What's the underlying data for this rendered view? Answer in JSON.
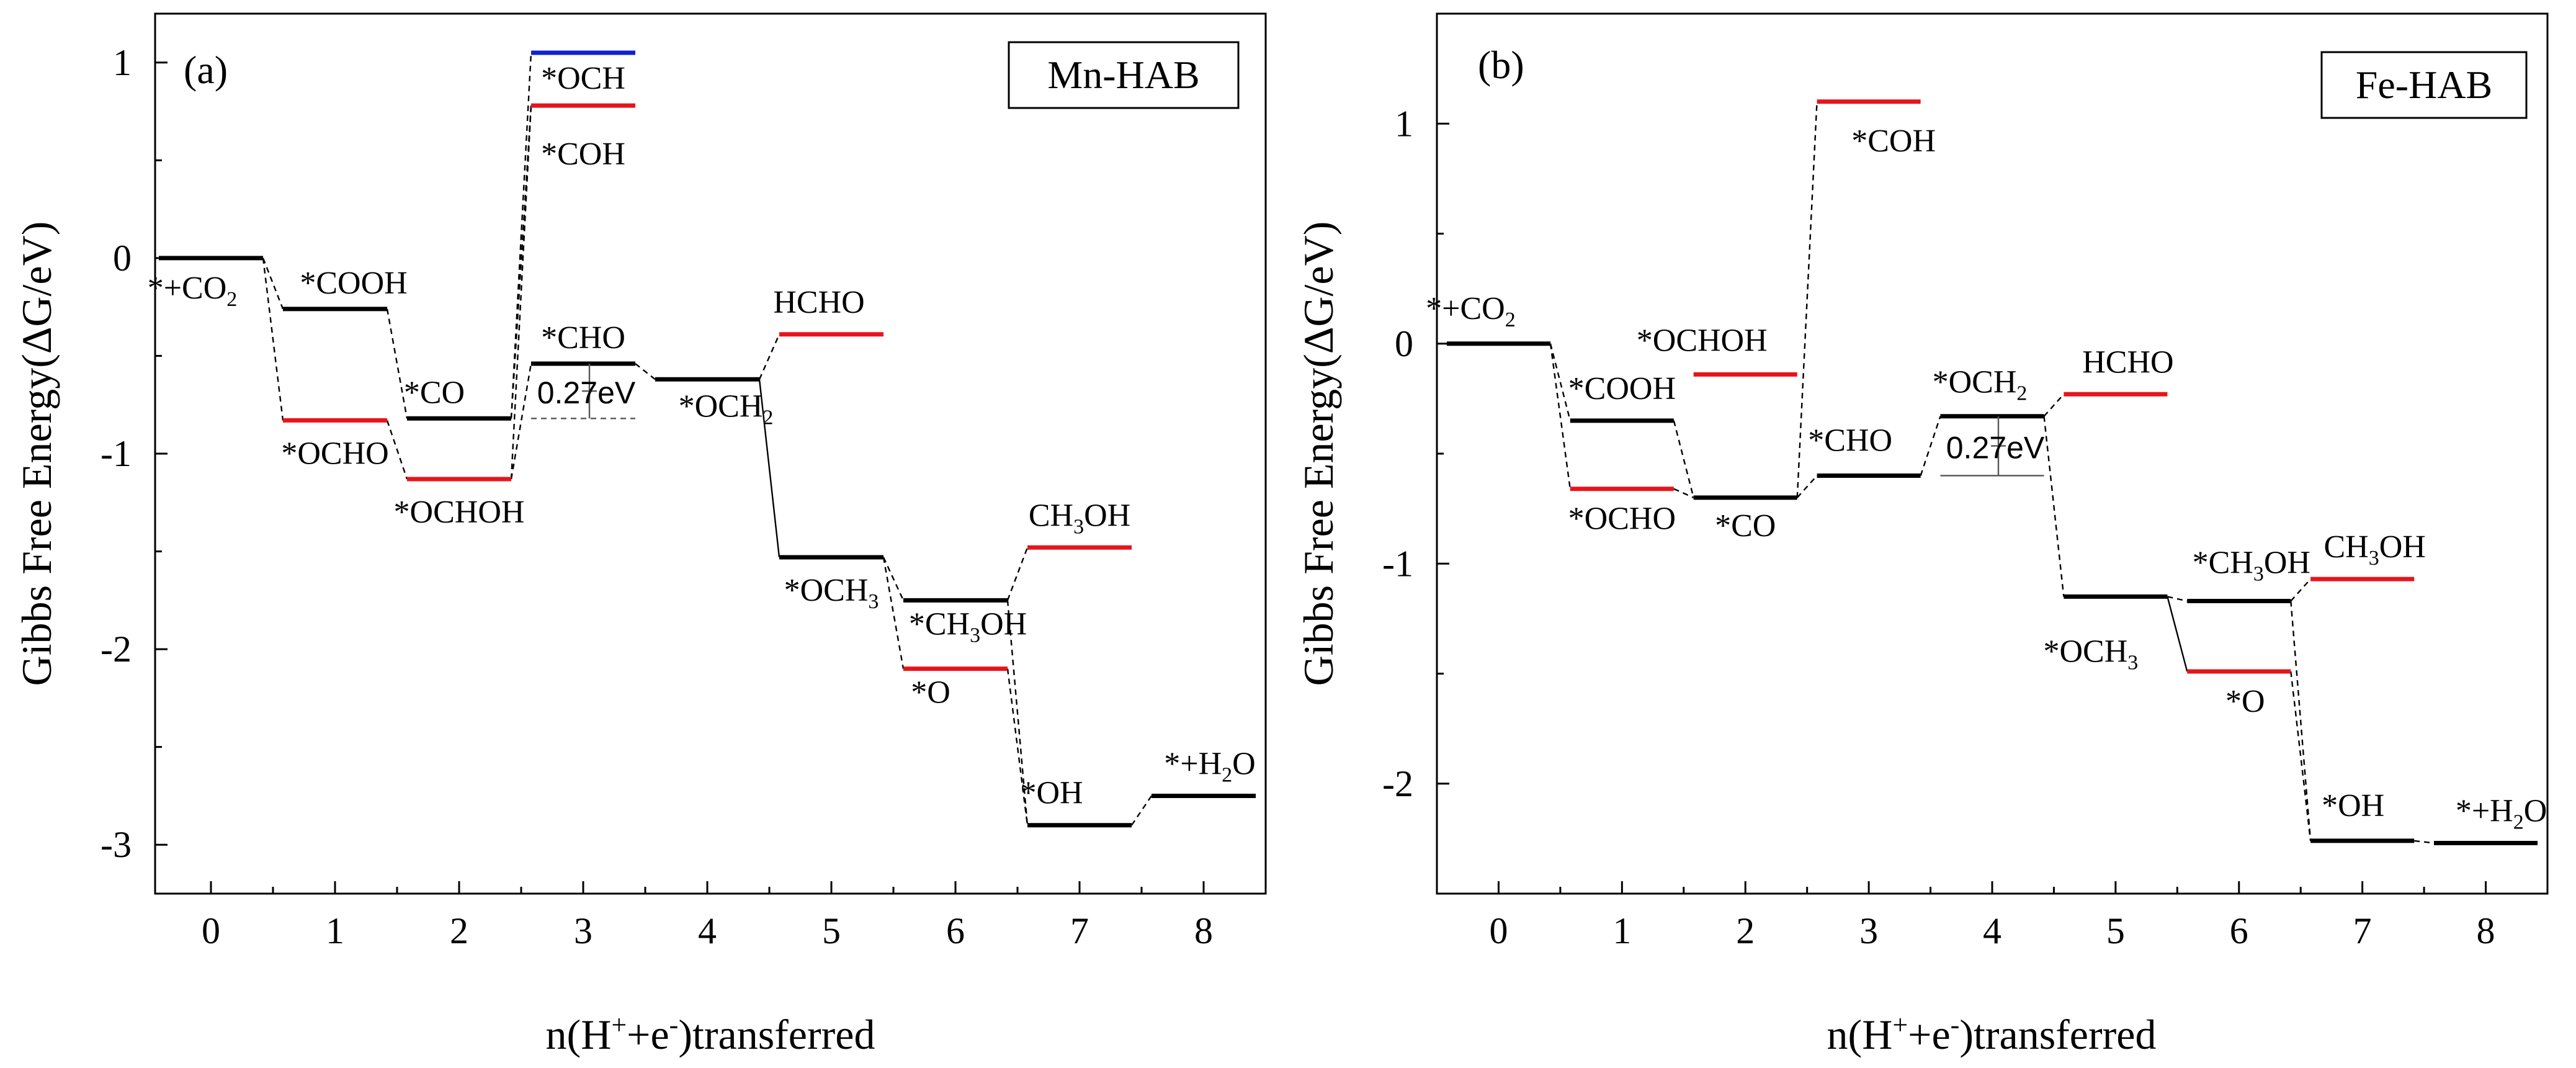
{
  "chart_data": [
    {
      "type": "line",
      "panel_label": "(a)",
      "legend": "Mn-HAB",
      "xlabel": "n(H+e-)transferred",
      "ylabel": "Gibbs Free Energy(ΔG/eV)",
      "xlim": [
        -0.45,
        8.5
      ],
      "ylim": [
        -3.25,
        1.25
      ],
      "xticks": [
        0,
        1,
        2,
        3,
        4,
        5,
        6,
        7,
        8
      ],
      "yticks": [
        1,
        0,
        -1,
        -2,
        -3
      ],
      "ytick_labels": [
        "1",
        "0",
        "-1",
        "-2",
        "-3"
      ],
      "levels": [
        {
          "x": 0,
          "y": 0.0,
          "color": "#000000",
          "label": [
            "*+CO",
            "2",
            ""
          ]
        },
        {
          "x": 1,
          "y": -0.26,
          "color": "#000000",
          "label": [
            "*COOH",
            "",
            ""
          ]
        },
        {
          "x": 1,
          "y": -0.83,
          "color": "#e8141b",
          "label": [
            "*OCHO",
            "",
            ""
          ]
        },
        {
          "x": 2,
          "y": -0.82,
          "color": "#000000",
          "label": [
            "*CO",
            "",
            ""
          ]
        },
        {
          "x": 2,
          "y": -1.13,
          "color": "#e8141b",
          "label": [
            "*OCHOH",
            "",
            ""
          ]
        },
        {
          "x": 3,
          "y": 1.05,
          "color": "#1020d0",
          "label": [
            "*OCH",
            "",
            ""
          ]
        },
        {
          "x": 3,
          "y": 0.78,
          "color": "#e8141b",
          "label": [
            "*COH",
            "",
            ""
          ]
        },
        {
          "x": 3,
          "y": -0.54,
          "color": "#000000",
          "label": [
            "*CHO",
            "",
            ""
          ]
        },
        {
          "x": 4,
          "y": -0.62,
          "color": "#000000",
          "label": [
            "*OCH",
            "2",
            ""
          ]
        },
        {
          "x": 5,
          "y": -0.39,
          "color": "#e8141b",
          "label": [
            "HCHO",
            "",
            ""
          ]
        },
        {
          "x": 5,
          "y": -1.53,
          "color": "#000000",
          "label": [
            "*OCH",
            "3",
            ""
          ]
        },
        {
          "x": 6,
          "y": -1.75,
          "color": "#000000",
          "label": [
            "*CH",
            "3",
            "OH"
          ]
        },
        {
          "x": 6,
          "y": -2.1,
          "color": "#e8141b",
          "label": [
            "*O",
            "",
            ""
          ]
        },
        {
          "x": 7,
          "y": -1.48,
          "color": "#e8141b",
          "label": [
            "CH",
            "3",
            "OH"
          ]
        },
        {
          "x": 7,
          "y": -2.9,
          "color": "#000000",
          "label": [
            "*OH",
            "",
            ""
          ]
        },
        {
          "x": 8,
          "y": -2.75,
          "color": "#000000",
          "label": [
            "*+H",
            "2",
            "O"
          ]
        }
      ],
      "barrier_annotation": {
        "text": "0.27eV",
        "x": 3,
        "from": -0.82,
        "to": -0.54
      }
    },
    {
      "type": "line",
      "panel_label": "(b)",
      "legend": "Fe-HAB",
      "xlabel": "n(H+e-)transferred",
      "ylabel": "Gibbs Free Energy(ΔG/eV)",
      "xlim": [
        -0.5,
        8.5
      ],
      "ylim": [
        -2.5,
        1.5
      ],
      "xticks": [
        0,
        1,
        2,
        3,
        4,
        5,
        6,
        7,
        8
      ],
      "yticks": [
        1,
        0,
        -1,
        -2
      ],
      "ytick_labels": [
        "1",
        "0",
        "-1",
        "-2"
      ],
      "levels": [
        {
          "x": 0,
          "y": 0.0,
          "color": "#000000",
          "label": [
            "*+CO",
            "2",
            ""
          ]
        },
        {
          "x": 1,
          "y": -0.35,
          "color": "#000000",
          "label": [
            "*COOH",
            "",
            ""
          ]
        },
        {
          "x": 1,
          "y": -0.66,
          "color": "#e8141b",
          "label": [
            "*OCHO",
            "",
            ""
          ]
        },
        {
          "x": 2,
          "y": -0.14,
          "color": "#e8141b",
          "label": [
            "*OCHOH",
            "",
            ""
          ]
        },
        {
          "x": 2,
          "y": -0.7,
          "color": "#000000",
          "label": [
            "*CO",
            "",
            ""
          ]
        },
        {
          "x": 3,
          "y": 1.1,
          "color": "#e8141b",
          "label": [
            "*COH",
            "",
            ""
          ]
        },
        {
          "x": 3,
          "y": -0.6,
          "color": "#000000",
          "label": [
            "*CHO",
            "",
            ""
          ]
        },
        {
          "x": 4,
          "y": -0.33,
          "color": "#000000",
          "label": [
            "*OCH",
            "2",
            ""
          ]
        },
        {
          "x": 5,
          "y": -0.23,
          "color": "#e8141b",
          "label": [
            "HCHO",
            "",
            ""
          ]
        },
        {
          "x": 5,
          "y": -1.15,
          "color": "#000000",
          "label": [
            "*OCH",
            "3",
            ""
          ]
        },
        {
          "x": 6,
          "y": -1.17,
          "color": "#000000",
          "label": [
            "*CH",
            "3",
            "OH"
          ]
        },
        {
          "x": 6,
          "y": -1.49,
          "color": "#e8141b",
          "label": [
            "*O",
            "",
            ""
          ]
        },
        {
          "x": 7,
          "y": -1.07,
          "color": "#e8141b",
          "label": [
            "CH",
            "3",
            "OH"
          ]
        },
        {
          "x": 7,
          "y": -2.26,
          "color": "#000000",
          "label": [
            "*OH",
            "",
            ""
          ]
        },
        {
          "x": 8,
          "y": -2.27,
          "color": "#000000",
          "label": [
            "*+H",
            "2",
            "O"
          ]
        }
      ],
      "barrier_annotation": {
        "text": "0.27eV",
        "x": 4,
        "from": -0.6,
        "to": -0.33
      }
    }
  ]
}
